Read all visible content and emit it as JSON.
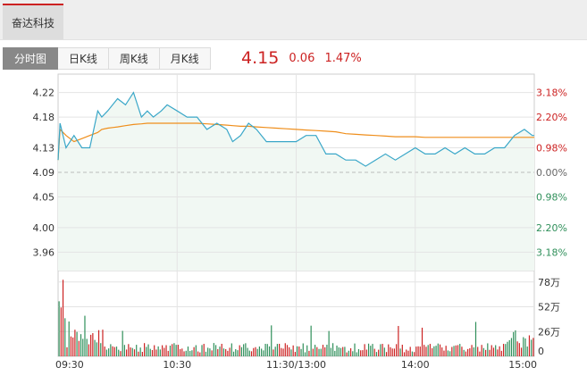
{
  "stock_tab": {
    "label": "奋达科技"
  },
  "tabs": [
    {
      "label": "分时图",
      "active": true
    },
    {
      "label": "日K线",
      "active": false
    },
    {
      "label": "周K线",
      "active": false
    },
    {
      "label": "月K线",
      "active": false
    }
  ],
  "quote": {
    "price": "4.15",
    "change": "0.06",
    "percent": "1.47%"
  },
  "colors": {
    "up": "#cc2222",
    "down": "#2f8f5a",
    "price_line": "#3aa7c8",
    "avg_line": "#ef8e1b",
    "fill": "#f1f8f3",
    "grid": "#e4e4e4"
  },
  "chart_data": {
    "type": "line",
    "prev_close": 4.09,
    "ylim": [
      3.93,
      4.25
    ],
    "price_ticks": [
      "4.22",
      "4.18",
      "4.13",
      "4.09",
      "4.05",
      "4.00",
      "3.96"
    ],
    "percent_ticks": [
      "3.18%",
      "2.20%",
      "0.98%",
      "0.00%",
      "0.98%",
      "2.20%",
      "3.18%"
    ],
    "x_ticks": [
      "09:30",
      "10:30",
      "11:30/13:00",
      "14:00",
      "15:00"
    ],
    "volume_ticks": [
      "78万",
      "52万",
      "26万",
      "0"
    ],
    "volume_max_wan": 90,
    "series": [
      {
        "x": [
          0,
          1,
          4,
          8,
          12,
          16,
          20,
          22,
          25,
          30,
          34,
          38,
          42,
          45,
          48,
          52,
          55,
          60,
          65,
          70,
          75,
          80,
          85,
          88,
          92,
          96,
          100,
          105,
          110,
          115,
          120,
          125,
          130,
          135,
          140,
          145,
          150,
          155,
          160,
          165,
          170,
          175,
          180,
          185,
          190,
          195,
          200,
          205,
          210,
          215,
          220,
          225,
          230,
          235,
          239,
          240
        ],
        "price": [
          4.11,
          4.17,
          4.13,
          4.15,
          4.13,
          4.13,
          4.19,
          4.18,
          4.19,
          4.21,
          4.2,
          4.22,
          4.18,
          4.19,
          4.18,
          4.19,
          4.2,
          4.19,
          4.18,
          4.18,
          4.16,
          4.17,
          4.16,
          4.14,
          4.15,
          4.17,
          4.16,
          4.14,
          4.14,
          4.14,
          4.14,
          4.15,
          4.15,
          4.12,
          4.12,
          4.11,
          4.11,
          4.1,
          4.11,
          4.12,
          4.11,
          4.12,
          4.13,
          4.12,
          4.12,
          4.13,
          4.12,
          4.13,
          4.12,
          4.12,
          4.13,
          4.13,
          4.15,
          4.16,
          4.15,
          4.15
        ],
        "avg": [
          4.11,
          4.16,
          4.15,
          4.14,
          4.145,
          4.15,
          4.155,
          4.16,
          4.162,
          4.164,
          4.166,
          4.168,
          4.169,
          4.17,
          4.17,
          4.17,
          4.17,
          4.17,
          4.17,
          4.17,
          4.169,
          4.168,
          4.167,
          4.166,
          4.165,
          4.165,
          4.164,
          4.163,
          4.162,
          4.161,
          4.16,
          4.159,
          4.158,
          4.157,
          4.156,
          4.153,
          4.152,
          4.151,
          4.15,
          4.149,
          4.148,
          4.148,
          4.148,
          4.147,
          4.147,
          4.147,
          4.147,
          4.147,
          4.147,
          4.147,
          4.147,
          4.147,
          4.147,
          4.147,
          4.147,
          4.147
        ]
      }
    ]
  }
}
